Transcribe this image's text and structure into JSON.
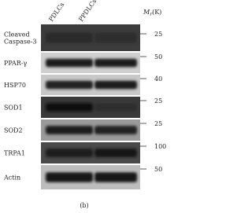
{
  "columns": [
    "PDLCs",
    "PPDLCs"
  ],
  "marker_header": {
    "symbol": "M",
    "subscript": "r",
    "unit": "(K)"
  },
  "rows": [
    {
      "label": [
        "Cleaved",
        "Caspase-3"
      ],
      "marker": 25
    },
    {
      "label": [
        "PPAR-γ"
      ],
      "marker": 50
    },
    {
      "label": [
        "HSP70"
      ],
      "marker": 40
    },
    {
      "label": [
        "SOD1"
      ],
      "marker": 25
    },
    {
      "label": [
        "SOD2"
      ],
      "marker": 25
    },
    {
      "label": [
        "TRPA1"
      ],
      "marker": 100
    },
    {
      "label": [
        "Actin"
      ],
      "marker": 50
    }
  ],
  "caption": "(b)"
}
